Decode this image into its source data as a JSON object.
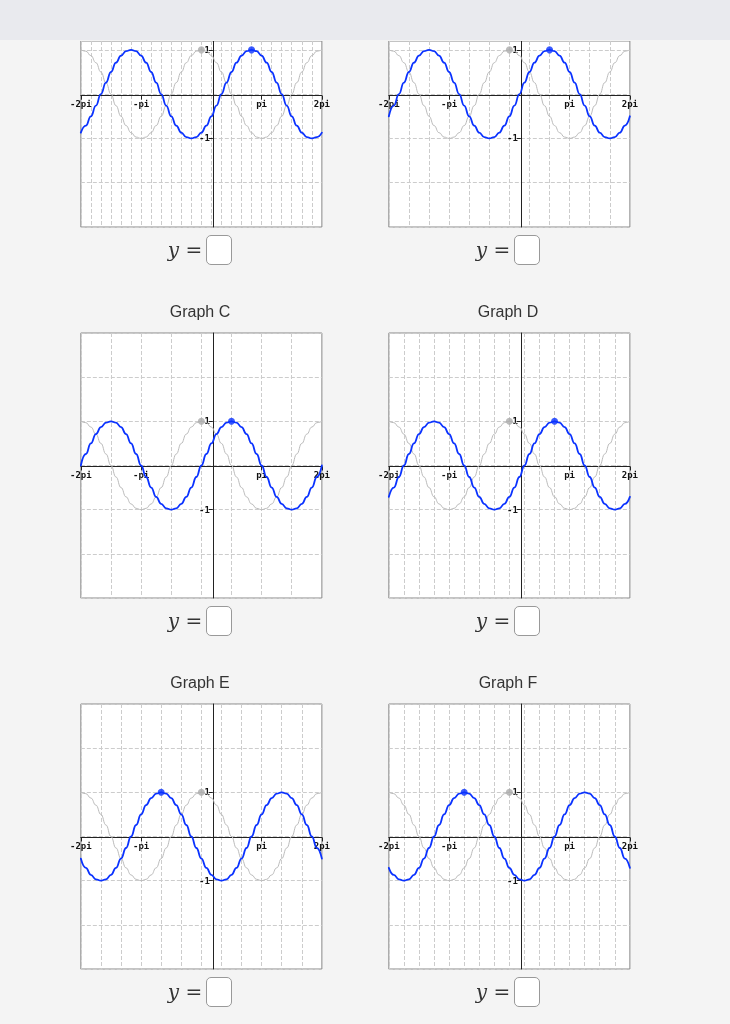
{
  "chart_data": [
    {
      "type": "line",
      "x": [
        -2,
        -1.917,
        -1.833,
        -1.75,
        -1.667,
        -1.583,
        -1.5,
        -1.417,
        -1.333,
        -1.25,
        -1.167,
        -1.083,
        -1,
        -0.917,
        -0.833,
        -0.75,
        -0.667,
        -0.583,
        -0.5,
        -0.417,
        -0.333,
        -0.25,
        -0.167,
        -0.083,
        0,
        0.083,
        0.167,
        0.25,
        0.333,
        0.417,
        0.5,
        0.583,
        0.667,
        0.75,
        0.833,
        0.917,
        1,
        1.083,
        1.167,
        1.25,
        1.333,
        1.417,
        1.5,
        1.583,
        1.667,
        1.75,
        1.833,
        1.917,
        2
      ],
      "xlim": [
        -2,
        2
      ],
      "xticks": [
        {
          "value": -2,
          "label": "-2pi"
        },
        {
          "value": -1.833,
          "label": null
        },
        {
          "value": -1.667,
          "label": null
        },
        {
          "value": -1.5,
          "label": null
        },
        {
          "value": -1.333,
          "label": null
        },
        {
          "value": -1.167,
          "label": null
        },
        {
          "value": -1,
          "label": "-pi"
        },
        {
          "value": -0.833,
          "label": null
        },
        {
          "value": -0.667,
          "label": null
        },
        {
          "value": -0.5,
          "label": null
        },
        {
          "value": -0.333,
          "label": null
        },
        {
          "value": -0.167,
          "label": null
        },
        {
          "value": 0,
          "label": null
        },
        {
          "value": 0.167,
          "label": null
        },
        {
          "value": 0.333,
          "label": null
        },
        {
          "value": 0.5,
          "label": null
        },
        {
          "value": 0.667,
          "label": null
        },
        {
          "value": 0.833,
          "label": null
        },
        {
          "value": 1,
          "label": "pi"
        },
        {
          "value": 1.167,
          "label": null
        },
        {
          "value": 1.333,
          "label": null
        },
        {
          "value": 1.5,
          "label": null
        },
        {
          "value": 1.667,
          "label": null
        },
        {
          "value": 1.833,
          "label": null
        },
        {
          "value": 2,
          "label": "2pi"
        }
      ],
      "ylim": [
        -3,
        1.2
      ],
      "yticks": [
        {
          "value": -3,
          "label": null
        },
        {
          "value": -2,
          "label": null
        },
        {
          "value": -1,
          "label": "-1"
        },
        {
          "value": 0,
          "label": null
        },
        {
          "value": 1,
          "label": "1"
        }
      ],
      "grid": true,
      "marker": "none",
      "annotations": [
        "y ="
      ],
      "series": [
        {
          "color": "#bbbbbb",
          "values": [
            1,
            0.97,
            0.87,
            0.71,
            0.5,
            0.26,
            0,
            -0.26,
            -0.5,
            -0.71,
            -0.87,
            -0.97,
            -1,
            -0.97,
            -0.87,
            -0.71,
            -0.5,
            -0.26,
            0,
            0.26,
            0.5,
            0.71,
            0.87,
            0.97,
            1,
            0.97,
            0.87,
            0.71,
            0.5,
            0.26,
            0,
            -0.26,
            -0.5,
            -0.71,
            -0.87,
            -0.97,
            -1,
            -0.97,
            -0.87,
            -0.71,
            -0.5,
            -0.26,
            0,
            0.26,
            0.5,
            0.71,
            0.87,
            0.97,
            1
          ]
        },
        {
          "color": "#0a32ff",
          "values": [
            -0.87,
            -0.71,
            -0.5,
            -0.26,
            0,
            0.26,
            0.5,
            0.71,
            0.87,
            0.97,
            1,
            0.97,
            0.87,
            0.71,
            0.5,
            0.26,
            0,
            -0.26,
            -0.5,
            -0.71,
            -0.87,
            -0.97,
            -1,
            -0.97,
            -0.87,
            -0.71,
            -0.5,
            -0.26,
            0,
            0.26,
            0.5,
            0.71,
            0.87,
            0.97,
            1,
            0.97,
            0.87,
            0.71,
            0.5,
            0.26,
            0,
            -0.26,
            -0.5,
            -0.71,
            -0.87,
            -0.97,
            -1,
            -0.97,
            -0.87
          ]
        },
        {
          "type": "scatter",
          "color": "#aaaaaa",
          "x": [
            0
          ],
          "values": [
            1
          ]
        },
        {
          "type": "scatter",
          "color": "#0a32ff",
          "x": [
            0.833
          ],
          "values": [
            1
          ]
        }
      ]
    },
    {
      "type": "line",
      "x": [
        -2,
        -1.917,
        -1.833,
        -1.75,
        -1.667,
        -1.583,
        -1.5,
        -1.417,
        -1.333,
        -1.25,
        -1.167,
        -1.083,
        -1,
        -0.917,
        -0.833,
        -0.75,
        -0.667,
        -0.583,
        -0.5,
        -0.417,
        -0.333,
        -0.25,
        -0.167,
        -0.083,
        0,
        0.083,
        0.167,
        0.25,
        0.333,
        0.417,
        0.5,
        0.583,
        0.667,
        0.75,
        0.833,
        0.917,
        1,
        1.083,
        1.167,
        1.25,
        1.333,
        1.417,
        1.5,
        1.583,
        1.667,
        1.75,
        1.833,
        1.917,
        2
      ],
      "xlim": [
        -2,
        2
      ],
      "xticks": [
        {
          "value": -2,
          "label": "-2pi"
        },
        {
          "value": -1.667,
          "label": null
        },
        {
          "value": -1.333,
          "label": null
        },
        {
          "value": -1,
          "label": "-pi"
        },
        {
          "value": -0.667,
          "label": null
        },
        {
          "value": -0.333,
          "label": null
        },
        {
          "value": 0,
          "label": null
        },
        {
          "value": 0.333,
          "label": null
        },
        {
          "value": 0.667,
          "label": null
        },
        {
          "value": 1,
          "label": "pi"
        },
        {
          "value": 1.333,
          "label": null
        },
        {
          "value": 1.667,
          "label": null
        },
        {
          "value": 2,
          "label": "2pi"
        }
      ],
      "ylim": [
        -3,
        1.2
      ],
      "yticks": [
        {
          "value": -3,
          "label": null
        },
        {
          "value": -2,
          "label": null
        },
        {
          "value": -1,
          "label": "-1"
        },
        {
          "value": 0,
          "label": null
        },
        {
          "value": 1,
          "label": "1"
        }
      ],
      "grid": true,
      "marker": "none",
      "annotations": [
        "y ="
      ],
      "series": [
        {
          "color": "#bbbbbb",
          "values": [
            1,
            0.97,
            0.87,
            0.71,
            0.5,
            0.26,
            0,
            -0.26,
            -0.5,
            -0.71,
            -0.87,
            -0.97,
            -1,
            -0.97,
            -0.87,
            -0.71,
            -0.5,
            -0.26,
            0,
            0.26,
            0.5,
            0.71,
            0.87,
            0.97,
            1,
            0.97,
            0.87,
            0.71,
            0.5,
            0.26,
            0,
            -0.26,
            -0.5,
            -0.71,
            -0.87,
            -0.97,
            -1,
            -0.97,
            -0.87,
            -0.71,
            -0.5,
            -0.26,
            0,
            0.26,
            0.5,
            0.71,
            0.87,
            0.97,
            1
          ]
        },
        {
          "color": "#0a32ff",
          "values": [
            -0.5,
            -0.26,
            0,
            0.26,
            0.5,
            0.71,
            0.87,
            0.97,
            1,
            0.97,
            0.87,
            0.71,
            0.5,
            0.26,
            0,
            -0.26,
            -0.5,
            -0.71,
            -0.87,
            -0.97,
            -1,
            -0.97,
            -0.87,
            -0.71,
            -0.5,
            -0.26,
            0,
            0.26,
            0.5,
            0.71,
            0.87,
            0.97,
            1,
            0.97,
            0.87,
            0.71,
            0.5,
            0.26,
            0,
            -0.26,
            -0.5,
            -0.71,
            -0.87,
            -0.97,
            -1,
            -0.97,
            -0.87,
            -0.71,
            -0.5
          ]
        },
        {
          "type": "scatter",
          "color": "#aaaaaa",
          "x": [
            0
          ],
          "values": [
            1
          ]
        },
        {
          "type": "scatter",
          "color": "#0a32ff",
          "x": [
            0.667
          ],
          "values": [
            1
          ]
        }
      ]
    },
    {
      "type": "line",
      "title": "Graph C",
      "x": [
        -2,
        -1.917,
        -1.833,
        -1.75,
        -1.667,
        -1.583,
        -1.5,
        -1.417,
        -1.333,
        -1.25,
        -1.167,
        -1.083,
        -1,
        -0.917,
        -0.833,
        -0.75,
        -0.667,
        -0.583,
        -0.5,
        -0.417,
        -0.333,
        -0.25,
        -0.167,
        -0.083,
        0,
        0.083,
        0.167,
        0.25,
        0.333,
        0.417,
        0.5,
        0.583,
        0.667,
        0.75,
        0.833,
        0.917,
        1,
        1.083,
        1.167,
        1.25,
        1.333,
        1.417,
        1.5,
        1.583,
        1.667,
        1.75,
        1.833,
        1.917,
        2
      ],
      "xlim": [
        -2,
        2
      ],
      "xticks": [
        {
          "value": -2,
          "label": "-2pi"
        },
        {
          "value": -1.5,
          "label": null
        },
        {
          "value": -1,
          "label": "-pi"
        },
        {
          "value": -0.5,
          "label": null
        },
        {
          "value": 0,
          "label": null
        },
        {
          "value": 0.5,
          "label": null
        },
        {
          "value": 1,
          "label": "pi"
        },
        {
          "value": 1.5,
          "label": null
        },
        {
          "value": 2,
          "label": "2pi"
        }
      ],
      "ylim": [
        -3,
        3
      ],
      "yticks": [
        {
          "value": -3,
          "label": null
        },
        {
          "value": -2,
          "label": null
        },
        {
          "value": -1,
          "label": "-1"
        },
        {
          "value": 0,
          "label": null
        },
        {
          "value": 1,
          "label": "1"
        },
        {
          "value": 2,
          "label": null
        },
        {
          "value": 3,
          "label": null
        }
      ],
      "grid": true,
      "marker": "none",
      "annotations": [
        "y ="
      ],
      "series": [
        {
          "color": "#bbbbbb",
          "values": [
            1,
            0.97,
            0.87,
            0.71,
            0.5,
            0.26,
            0,
            -0.26,
            -0.5,
            -0.71,
            -0.87,
            -0.97,
            -1,
            -0.97,
            -0.87,
            -0.71,
            -0.5,
            -0.26,
            0,
            0.26,
            0.5,
            0.71,
            0.87,
            0.97,
            1,
            0.97,
            0.87,
            0.71,
            0.5,
            0.26,
            0,
            -0.26,
            -0.5,
            -0.71,
            -0.87,
            -0.97,
            -1,
            -0.97,
            -0.87,
            -0.71,
            -0.5,
            -0.26,
            0,
            0.26,
            0.5,
            0.71,
            0.87,
            0.97,
            1
          ]
        },
        {
          "color": "#0a32ff",
          "values": [
            0,
            0.26,
            0.5,
            0.71,
            0.87,
            0.97,
            1,
            0.97,
            0.87,
            0.71,
            0.5,
            0.26,
            0,
            -0.26,
            -0.5,
            -0.71,
            -0.87,
            -0.97,
            -1,
            -0.97,
            -0.87,
            -0.71,
            -0.5,
            -0.26,
            0,
            0.26,
            0.5,
            0.71,
            0.87,
            0.97,
            1,
            0.97,
            0.87,
            0.71,
            0.5,
            0.26,
            0,
            -0.26,
            -0.5,
            -0.71,
            -0.87,
            -0.97,
            -1,
            -0.97,
            -0.87,
            -0.71,
            -0.5,
            -0.26,
            0
          ]
        },
        {
          "type": "scatter",
          "color": "#aaaaaa",
          "x": [
            0
          ],
          "values": [
            1
          ]
        },
        {
          "type": "scatter",
          "color": "#0a32ff",
          "x": [
            0.5
          ],
          "values": [
            1
          ]
        }
      ]
    },
    {
      "type": "line",
      "title": "Graph D",
      "x": [
        -2,
        -1.917,
        -1.833,
        -1.75,
        -1.667,
        -1.583,
        -1.5,
        -1.417,
        -1.333,
        -1.25,
        -1.167,
        -1.083,
        -1,
        -0.917,
        -0.833,
        -0.75,
        -0.667,
        -0.583,
        -0.5,
        -0.417,
        -0.333,
        -0.25,
        -0.167,
        -0.083,
        0,
        0.083,
        0.167,
        0.25,
        0.333,
        0.417,
        0.5,
        0.583,
        0.667,
        0.75,
        0.833,
        0.917,
        1,
        1.083,
        1.167,
        1.25,
        1.333,
        1.417,
        1.5,
        1.583,
        1.667,
        1.75,
        1.833,
        1.917,
        2
      ],
      "xlim": [
        -2,
        2
      ],
      "xticks": [
        {
          "value": -2,
          "label": "-2pi"
        },
        {
          "value": -1.75,
          "label": null
        },
        {
          "value": -1.5,
          "label": null
        },
        {
          "value": -1.25,
          "label": null
        },
        {
          "value": -1,
          "label": "-pi"
        },
        {
          "value": -0.75,
          "label": null
        },
        {
          "value": -0.5,
          "label": null
        },
        {
          "value": -0.25,
          "label": null
        },
        {
          "value": 0,
          "label": null
        },
        {
          "value": 0.25,
          "label": null
        },
        {
          "value": 0.5,
          "label": null
        },
        {
          "value": 0.75,
          "label": null
        },
        {
          "value": 1,
          "label": "pi"
        },
        {
          "value": 1.25,
          "label": null
        },
        {
          "value": 1.5,
          "label": null
        },
        {
          "value": 1.75,
          "label": null
        },
        {
          "value": 2,
          "label": "2pi"
        }
      ],
      "ylim": [
        -3,
        3
      ],
      "yticks": [
        {
          "value": -3,
          "label": null
        },
        {
          "value": -2,
          "label": null
        },
        {
          "value": -1,
          "label": "-1"
        },
        {
          "value": 0,
          "label": null
        },
        {
          "value": 1,
          "label": "1"
        },
        {
          "value": 2,
          "label": null
        },
        {
          "value": 3,
          "label": null
        }
      ],
      "grid": true,
      "marker": "none",
      "annotations": [
        "y ="
      ],
      "series": [
        {
          "color": "#bbbbbb",
          "values": [
            1,
            0.97,
            0.87,
            0.71,
            0.5,
            0.26,
            0,
            -0.26,
            -0.5,
            -0.71,
            -0.87,
            -0.97,
            -1,
            -0.97,
            -0.87,
            -0.71,
            -0.5,
            -0.26,
            0,
            0.26,
            0.5,
            0.71,
            0.87,
            0.97,
            1,
            0.97,
            0.87,
            0.71,
            0.5,
            0.26,
            0,
            -0.26,
            -0.5,
            -0.71,
            -0.87,
            -0.97,
            -1,
            -0.97,
            -0.87,
            -0.71,
            -0.5,
            -0.26,
            0,
            0.26,
            0.5,
            0.71,
            0.87,
            0.97,
            1
          ]
        },
        {
          "color": "#0a32ff",
          "values": [
            -0.71,
            -0.5,
            -0.26,
            0,
            0.26,
            0.5,
            0.71,
            0.87,
            0.97,
            1,
            0.97,
            0.87,
            0.71,
            0.5,
            0.26,
            0,
            -0.26,
            -0.5,
            -0.71,
            -0.87,
            -0.97,
            -1,
            -0.97,
            -0.87,
            -0.71,
            -0.5,
            -0.26,
            0,
            0.26,
            0.5,
            0.71,
            0.87,
            0.97,
            1,
            0.97,
            0.87,
            0.71,
            0.5,
            0.26,
            0,
            -0.26,
            -0.5,
            -0.71,
            -0.87,
            -0.97,
            -1,
            -0.97,
            -0.87,
            -0.71
          ]
        },
        {
          "type": "scatter",
          "color": "#aaaaaa",
          "x": [
            0
          ],
          "values": [
            1
          ]
        },
        {
          "type": "scatter",
          "color": "#0a32ff",
          "x": [
            0.75
          ],
          "values": [
            1
          ]
        }
      ]
    },
    {
      "type": "line",
      "title": "Graph E",
      "x": [
        -2,
        -1.917,
        -1.833,
        -1.75,
        -1.667,
        -1.583,
        -1.5,
        -1.417,
        -1.333,
        -1.25,
        -1.167,
        -1.083,
        -1,
        -0.917,
        -0.833,
        -0.75,
        -0.667,
        -0.583,
        -0.5,
        -0.417,
        -0.333,
        -0.25,
        -0.167,
        -0.083,
        0,
        0.083,
        0.167,
        0.25,
        0.333,
        0.417,
        0.5,
        0.583,
        0.667,
        0.75,
        0.833,
        0.917,
        1,
        1.083,
        1.167,
        1.25,
        1.333,
        1.417,
        1.5,
        1.583,
        1.667,
        1.75,
        1.833,
        1.917,
        2
      ],
      "xlim": [
        -2,
        2
      ],
      "xticks": [
        {
          "value": -2,
          "label": "-2pi"
        },
        {
          "value": -1.667,
          "label": null
        },
        {
          "value": -1.333,
          "label": null
        },
        {
          "value": -1,
          "label": "-pi"
        },
        {
          "value": -0.667,
          "label": null
        },
        {
          "value": -0.333,
          "label": null
        },
        {
          "value": 0,
          "label": null
        },
        {
          "value": 0.333,
          "label": null
        },
        {
          "value": 0.667,
          "label": null
        },
        {
          "value": 1,
          "label": "pi"
        },
        {
          "value": 1.333,
          "label": null
        },
        {
          "value": 1.667,
          "label": null
        },
        {
          "value": 2,
          "label": "2pi"
        }
      ],
      "ylim": [
        -3,
        3
      ],
      "yticks": [
        {
          "value": -3,
          "label": null
        },
        {
          "value": -2,
          "label": null
        },
        {
          "value": -1,
          "label": "-1"
        },
        {
          "value": 0,
          "label": null
        },
        {
          "value": 1,
          "label": "1"
        },
        {
          "value": 2,
          "label": null
        },
        {
          "value": 3,
          "label": null
        }
      ],
      "grid": true,
      "marker": "none",
      "annotations": [
        "y ="
      ],
      "series": [
        {
          "color": "#bbbbbb",
          "values": [
            1,
            0.97,
            0.87,
            0.71,
            0.5,
            0.26,
            0,
            -0.26,
            -0.5,
            -0.71,
            -0.87,
            -0.97,
            -1,
            -0.97,
            -0.87,
            -0.71,
            -0.5,
            -0.26,
            0,
            0.26,
            0.5,
            0.71,
            0.87,
            0.97,
            1,
            0.97,
            0.87,
            0.71,
            0.5,
            0.26,
            0,
            -0.26,
            -0.5,
            -0.71,
            -0.87,
            -0.97,
            -1,
            -0.97,
            -0.87,
            -0.71,
            -0.5,
            -0.26,
            0,
            0.26,
            0.5,
            0.71,
            0.87,
            0.97,
            1
          ]
        },
        {
          "color": "#0a32ff",
          "values": [
            -0.5,
            -0.71,
            -0.87,
            -0.97,
            -1,
            -0.97,
            -0.87,
            -0.71,
            -0.5,
            -0.26,
            0,
            0.26,
            0.5,
            0.71,
            0.87,
            0.97,
            1,
            0.97,
            0.87,
            0.71,
            0.5,
            0.26,
            0,
            -0.26,
            -0.5,
            -0.71,
            -0.87,
            -0.97,
            -1,
            -0.97,
            -0.87,
            -0.71,
            -0.5,
            -0.26,
            0,
            0.26,
            0.5,
            0.71,
            0.87,
            0.97,
            1,
            0.97,
            0.87,
            0.71,
            0.5,
            0.26,
            0,
            -0.26,
            -0.5
          ]
        },
        {
          "type": "scatter",
          "color": "#aaaaaa",
          "x": [
            0
          ],
          "values": [
            1
          ]
        },
        {
          "type": "scatter",
          "color": "#0a32ff",
          "x": [
            -0.667
          ],
          "values": [
            1
          ]
        }
      ]
    },
    {
      "type": "line",
      "title": "Graph F",
      "x": [
        -2,
        -1.917,
        -1.833,
        -1.75,
        -1.667,
        -1.583,
        -1.5,
        -1.417,
        -1.333,
        -1.25,
        -1.167,
        -1.083,
        -1,
        -0.917,
        -0.833,
        -0.75,
        -0.667,
        -0.583,
        -0.5,
        -0.417,
        -0.333,
        -0.25,
        -0.167,
        -0.083,
        0,
        0.083,
        0.167,
        0.25,
        0.333,
        0.417,
        0.5,
        0.583,
        0.667,
        0.75,
        0.833,
        0.917,
        1,
        1.083,
        1.167,
        1.25,
        1.333,
        1.417,
        1.5,
        1.583,
        1.667,
        1.75,
        1.833,
        1.917,
        2
      ],
      "xlim": [
        -2,
        2
      ],
      "xticks": [
        {
          "value": -2,
          "label": "-2pi"
        },
        {
          "value": -1.75,
          "label": null
        },
        {
          "value": -1.5,
          "label": null
        },
        {
          "value": -1.25,
          "label": null
        },
        {
          "value": -1,
          "label": "-pi"
        },
        {
          "value": -0.75,
          "label": null
        },
        {
          "value": -0.5,
          "label": null
        },
        {
          "value": -0.25,
          "label": null
        },
        {
          "value": 0,
          "label": null
        },
        {
          "value": 0.25,
          "label": null
        },
        {
          "value": 0.5,
          "label": null
        },
        {
          "value": 0.75,
          "label": null
        },
        {
          "value": 1,
          "label": "pi"
        },
        {
          "value": 1.25,
          "label": null
        },
        {
          "value": 1.5,
          "label": null
        },
        {
          "value": 1.75,
          "label": null
        },
        {
          "value": 2,
          "label": "2pi"
        }
      ],
      "ylim": [
        -3,
        3
      ],
      "yticks": [
        {
          "value": -3,
          "label": null
        },
        {
          "value": -2,
          "label": null
        },
        {
          "value": -1,
          "label": "-1"
        },
        {
          "value": 0,
          "label": null
        },
        {
          "value": 1,
          "label": "1"
        },
        {
          "value": 2,
          "label": null
        },
        {
          "value": 3,
          "label": null
        }
      ],
      "grid": true,
      "marker": "none",
      "annotations": [
        "y ="
      ],
      "series": [
        {
          "color": "#bbbbbb",
          "values": [
            1,
            0.97,
            0.87,
            0.71,
            0.5,
            0.26,
            0,
            -0.26,
            -0.5,
            -0.71,
            -0.87,
            -0.97,
            -1,
            -0.97,
            -0.87,
            -0.71,
            -0.5,
            -0.26,
            0,
            0.26,
            0.5,
            0.71,
            0.87,
            0.97,
            1,
            0.97,
            0.87,
            0.71,
            0.5,
            0.26,
            0,
            -0.26,
            -0.5,
            -0.71,
            -0.87,
            -0.97,
            -1,
            -0.97,
            -0.87,
            -0.71,
            -0.5,
            -0.26,
            0,
            0.26,
            0.5,
            0.71,
            0.87,
            0.97,
            1
          ]
        },
        {
          "color": "#0a32ff",
          "values": [
            -0.71,
            -0.87,
            -0.97,
            -1,
            -0.97,
            -0.87,
            -0.71,
            -0.5,
            -0.26,
            0,
            0.26,
            0.5,
            0.71,
            0.87,
            0.97,
            1,
            0.97,
            0.87,
            0.71,
            0.5,
            0.26,
            0,
            -0.26,
            -0.5,
            -0.71,
            -0.87,
            -0.97,
            -1,
            -0.97,
            -0.87,
            -0.71,
            -0.5,
            -0.26,
            0,
            0.26,
            0.5,
            0.71,
            0.87,
            0.97,
            1,
            0.97,
            0.87,
            0.71,
            0.5,
            0.26,
            0,
            -0.26,
            -0.5,
            -0.71
          ]
        },
        {
          "type": "scatter",
          "color": "#aaaaaa",
          "x": [
            0
          ],
          "values": [
            1
          ]
        },
        {
          "type": "scatter",
          "color": "#0a32ff",
          "x": [
            -0.75
          ],
          "values": [
            1
          ]
        }
      ]
    }
  ]
}
